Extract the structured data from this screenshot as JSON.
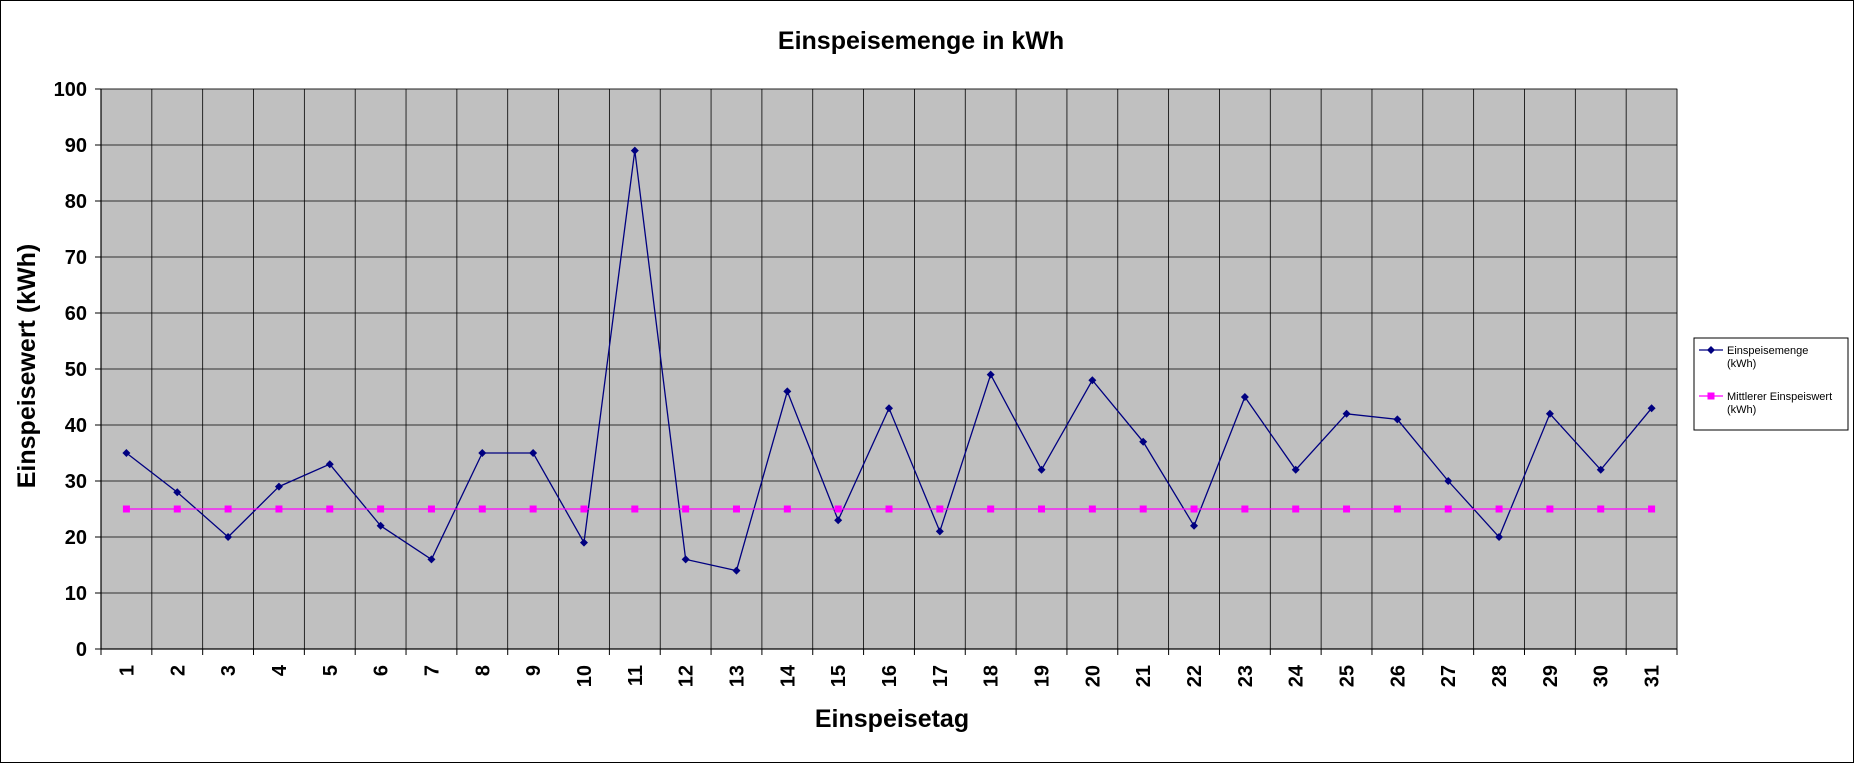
{
  "chart_data": {
    "type": "line",
    "title": "Einspeisemenge in kWh",
    "xlabel": "Einspeisetag",
    "ylabel": "Einspeisewert  (kWh)",
    "x": [
      1,
      2,
      3,
      4,
      5,
      6,
      7,
      8,
      9,
      10,
      11,
      12,
      13,
      14,
      15,
      16,
      17,
      18,
      19,
      20,
      21,
      22,
      23,
      24,
      25,
      26,
      27,
      28,
      29,
      30,
      31
    ],
    "ylim": [
      0,
      100
    ],
    "yticks": [
      0,
      10,
      20,
      30,
      40,
      50,
      60,
      70,
      80,
      90,
      100
    ],
    "grid": true,
    "legend_position": "right",
    "series": [
      {
        "name": "Einspeisemenge (kWh)",
        "legend_lines": [
          "Einspeisemenge",
          "(kWh)"
        ],
        "color": "#000080",
        "marker": "diamond",
        "values": [
          35,
          28,
          20,
          29,
          33,
          22,
          16,
          35,
          35,
          19,
          89,
          16,
          14,
          46,
          23,
          43,
          21,
          49,
          32,
          48,
          37,
          22,
          45,
          32,
          42,
          41,
          30,
          20,
          42,
          32,
          43
        ]
      },
      {
        "name": "Mittlerer Einspeiswert (kWh)",
        "legend_lines": [
          "Mittlerer Einspeiswert",
          "(kWh)"
        ],
        "color": "#FF00FF",
        "marker": "square",
        "values": [
          25,
          25,
          25,
          25,
          25,
          25,
          25,
          25,
          25,
          25,
          25,
          25,
          25,
          25,
          25,
          25,
          25,
          25,
          25,
          25,
          25,
          25,
          25,
          25,
          25,
          25,
          25,
          25,
          25,
          25,
          25
        ]
      }
    ],
    "plot_background": "#C0C0C0"
  }
}
